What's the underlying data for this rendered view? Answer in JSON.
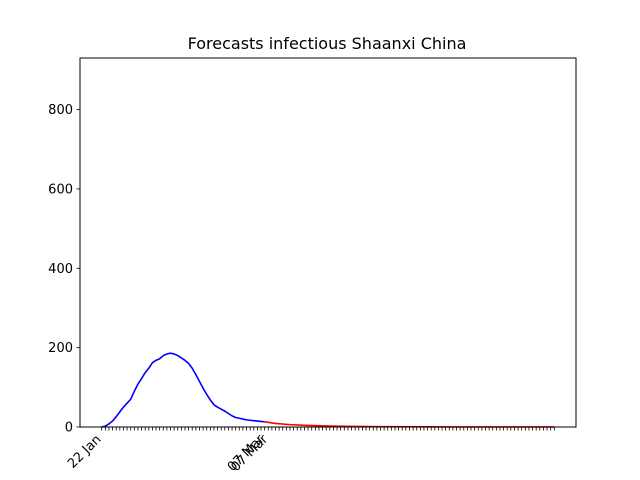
{
  "chart_data": {
    "type": "line",
    "title": "Forecasts infectious Shaanxi China",
    "xlabel": "",
    "ylabel": "",
    "ylim": [
      0,
      930
    ],
    "grid": false,
    "y_ticks": [
      0,
      200,
      400,
      600,
      800
    ],
    "x_start": "2020-01-22",
    "x_end": "2020-05-26",
    "x_tick_labels": [
      {
        "date": "2020-01-22",
        "label": "22 Jan"
      },
      {
        "date": "2020-03-07",
        "label": "07 Mar"
      },
      {
        "date": "2020-03-08",
        "label": "07 Mar"
      }
    ],
    "series": [
      {
        "color": "#0000ff",
        "points": [
          [
            "2020-01-22",
            0
          ],
          [
            "2020-01-23",
            2
          ],
          [
            "2020-01-24",
            8
          ],
          [
            "2020-01-25",
            15
          ],
          [
            "2020-01-26",
            26
          ],
          [
            "2020-01-27",
            38
          ],
          [
            "2020-01-28",
            50
          ],
          [
            "2020-01-29",
            60
          ],
          [
            "2020-01-30",
            70
          ],
          [
            "2020-01-31",
            90
          ],
          [
            "2020-02-01",
            108
          ],
          [
            "2020-02-02",
            122
          ],
          [
            "2020-02-03",
            137
          ],
          [
            "2020-02-04",
            148
          ],
          [
            "2020-02-05",
            162
          ],
          [
            "2020-02-06",
            168
          ],
          [
            "2020-02-07",
            172
          ],
          [
            "2020-02-08",
            180
          ],
          [
            "2020-02-09",
            184
          ],
          [
            "2020-02-10",
            186
          ],
          [
            "2020-02-11",
            184
          ],
          [
            "2020-02-12",
            180
          ],
          [
            "2020-02-13",
            174
          ],
          [
            "2020-02-14",
            168
          ],
          [
            "2020-02-15",
            160
          ],
          [
            "2020-02-16",
            148
          ],
          [
            "2020-02-17",
            132
          ],
          [
            "2020-02-18",
            115
          ],
          [
            "2020-02-19",
            98
          ],
          [
            "2020-02-20",
            82
          ],
          [
            "2020-02-21",
            68
          ],
          [
            "2020-02-22",
            56
          ],
          [
            "2020-02-23",
            50
          ],
          [
            "2020-02-24",
            45
          ],
          [
            "2020-02-25",
            40
          ],
          [
            "2020-02-26",
            34
          ],
          [
            "2020-02-27",
            28
          ],
          [
            "2020-02-28",
            24
          ],
          [
            "2020-02-29",
            22
          ],
          [
            "2020-03-01",
            20
          ],
          [
            "2020-03-02",
            18
          ],
          [
            "2020-03-03",
            17
          ],
          [
            "2020-03-04",
            16
          ],
          [
            "2020-03-05",
            15
          ],
          [
            "2020-03-06",
            14
          ],
          [
            "2020-03-07",
            13
          ]
        ]
      },
      {
        "color": "#ff0000",
        "points": [
          [
            "2020-03-07",
            13
          ],
          [
            "2020-03-10",
            9
          ],
          [
            "2020-03-14",
            6
          ],
          [
            "2020-03-19",
            4
          ],
          [
            "2020-03-25",
            2.5
          ],
          [
            "2020-04-01",
            1.5
          ],
          [
            "2020-04-10",
            0.8
          ],
          [
            "2020-04-20",
            0.4
          ],
          [
            "2020-05-01",
            0.2
          ],
          [
            "2020-05-15",
            0.1
          ],
          [
            "2020-05-26",
            0.05
          ]
        ]
      }
    ]
  }
}
